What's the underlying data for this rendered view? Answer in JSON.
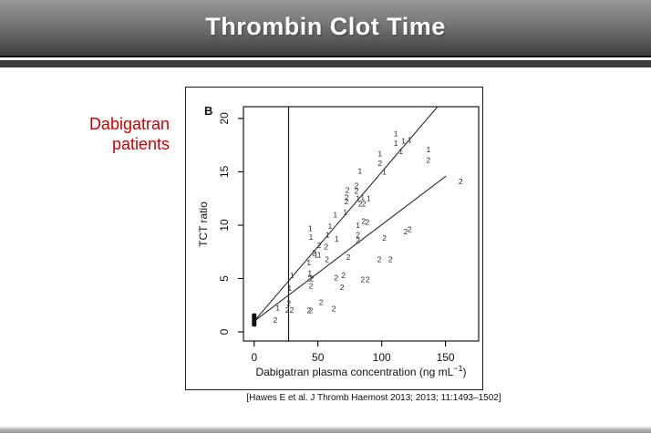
{
  "slide": {
    "title": "Thrombin Clot Time",
    "side_label": {
      "line1": "Dabigatran",
      "line2": "patients",
      "color": "#cc0000"
    },
    "citation": "[Hawes E et al. J Thromb Haemost 2013; 2013; 11:1493–1502]"
  },
  "chart_data": {
    "type": "scatter",
    "panel_label": "B",
    "ylabel": "TCT ratio",
    "xlabel": {
      "main": "Dabigatran plasma concentration (ng mL",
      "sup": "−1",
      "suffix": ")"
    },
    "xlim": [
      -8.4,
      176
    ],
    "ylim": [
      -0.85,
      21.1
    ],
    "xticks": [
      0,
      50,
      100,
      150
    ],
    "yticks": [
      0,
      5,
      10,
      15,
      20
    ],
    "grid": false,
    "marker_style": "digit-glyphs",
    "ink_color": "#2b2b2b",
    "vline_x": 27,
    "fit_lines": [
      {
        "name": "group1-fit",
        "x1": 0,
        "y1": 1.0,
        "x2": 143.8,
        "y2": 21.1
      },
      {
        "name": "group2-fit",
        "x1": 0,
        "y1": 1.0,
        "x2": 150.4,
        "y2": 14.6
      }
    ],
    "origin_cluster": {
      "x": 0,
      "y_low": 0.5,
      "y_high": 1.75,
      "note": "dense overlap of points at ~0 ng/mL"
    },
    "series": [
      {
        "name": "Group 1",
        "glyph": "1",
        "points": [
          [
            111,
            18.6
          ],
          [
            111,
            17.7
          ],
          [
            117,
            17.9
          ],
          [
            122,
            18.0
          ],
          [
            115,
            16.9
          ],
          [
            98.6,
            16.7
          ],
          [
            102,
            15.0
          ],
          [
            136.6,
            17.1
          ],
          [
            83,
            15.1
          ],
          [
            63.6,
            11.0
          ],
          [
            71.4,
            11.2
          ],
          [
            81.4,
            12.5
          ],
          [
            85,
            12.6
          ],
          [
            89.7,
            12.5
          ],
          [
            44,
            9.7
          ],
          [
            44.5,
            8.9
          ],
          [
            59.5,
            9.9
          ],
          [
            57.6,
            9.1
          ],
          [
            64.7,
            8.7
          ],
          [
            81.4,
            10.0
          ],
          [
            48.5,
            7.2
          ],
          [
            51,
            7.2
          ],
          [
            42.9,
            6.5
          ],
          [
            29.7,
            5.3
          ],
          [
            27.9,
            4.1
          ],
          [
            43.6,
            5.5
          ],
          [
            18.5,
            2.25
          ]
        ]
      },
      {
        "name": "Group 2",
        "glyph": "2",
        "points": [
          [
            98.6,
            15.8
          ],
          [
            136.6,
            16.1
          ],
          [
            161.9,
            14.1
          ],
          [
            73.1,
            13.3
          ],
          [
            80.2,
            13.7
          ],
          [
            80.2,
            13.2
          ],
          [
            72.4,
            12.6
          ],
          [
            72.4,
            12.2
          ],
          [
            83.3,
            12.0
          ],
          [
            86.1,
            12.0
          ],
          [
            85.7,
            10.4
          ],
          [
            88.6,
            10.3
          ],
          [
            81.4,
            9.1
          ],
          [
            81.4,
            8.6
          ],
          [
            102.1,
            8.8
          ],
          [
            118.8,
            9.4
          ],
          [
            121.9,
            9.6
          ],
          [
            98.1,
            6.8
          ],
          [
            106.9,
            6.8
          ],
          [
            57.1,
            6.8
          ],
          [
            73.8,
            7.0
          ],
          [
            47,
            7.4
          ],
          [
            51,
            8.1
          ],
          [
            56.4,
            8.0
          ],
          [
            43.6,
            5.0
          ],
          [
            45.2,
            5.0
          ],
          [
            44.5,
            4.3
          ],
          [
            64.3,
            5.1
          ],
          [
            70,
            5.3
          ],
          [
            69,
            4.2
          ],
          [
            85,
            4.9
          ],
          [
            89,
            4.9
          ],
          [
            52.4,
            2.8
          ],
          [
            62.4,
            2.2
          ],
          [
            42.9,
            2.0
          ],
          [
            44.5,
            2.0
          ],
          [
            27.1,
            2.7
          ],
          [
            26,
            2.05
          ],
          [
            29.5,
            2.05
          ],
          [
            16.6,
            1.1
          ]
        ]
      }
    ]
  }
}
